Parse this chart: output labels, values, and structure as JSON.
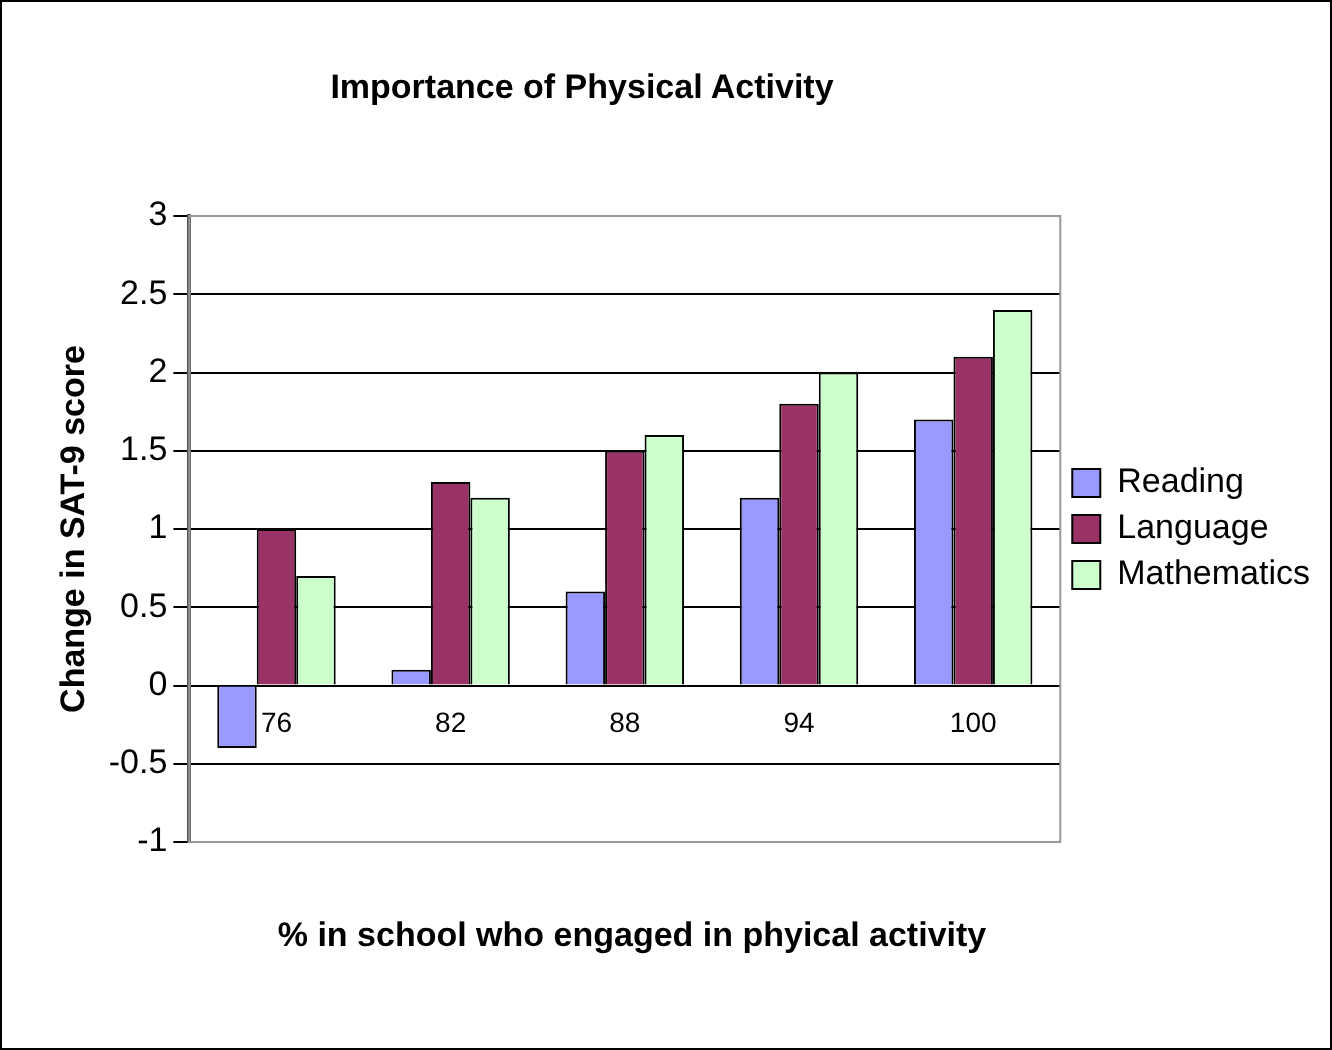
{
  "chart_data": {
    "type": "bar",
    "title": "Importance of Physical Activity",
    "xlabel": "% in school who engaged in phyical activity",
    "ylabel": "Change in SAT-9 score",
    "categories": [
      "76",
      "82",
      "88",
      "94",
      "100"
    ],
    "series": [
      {
        "name": "Reading",
        "color": "#9999ff",
        "values": [
          -0.4,
          0.1,
          0.6,
          1.2,
          1.7
        ]
      },
      {
        "name": "Language",
        "color": "#993366",
        "values": [
          1.0,
          1.3,
          1.5,
          1.8,
          2.1
        ]
      },
      {
        "name": "Mathematics",
        "color": "#ccffcc",
        "values": [
          0.7,
          1.2,
          1.6,
          2.0,
          2.4
        ]
      }
    ],
    "ylim": [
      -1,
      3
    ],
    "yticks": [
      -1,
      -0.5,
      0,
      0.5,
      1,
      1.5,
      2,
      2.5,
      3
    ],
    "grid": "y",
    "legend": "right"
  }
}
